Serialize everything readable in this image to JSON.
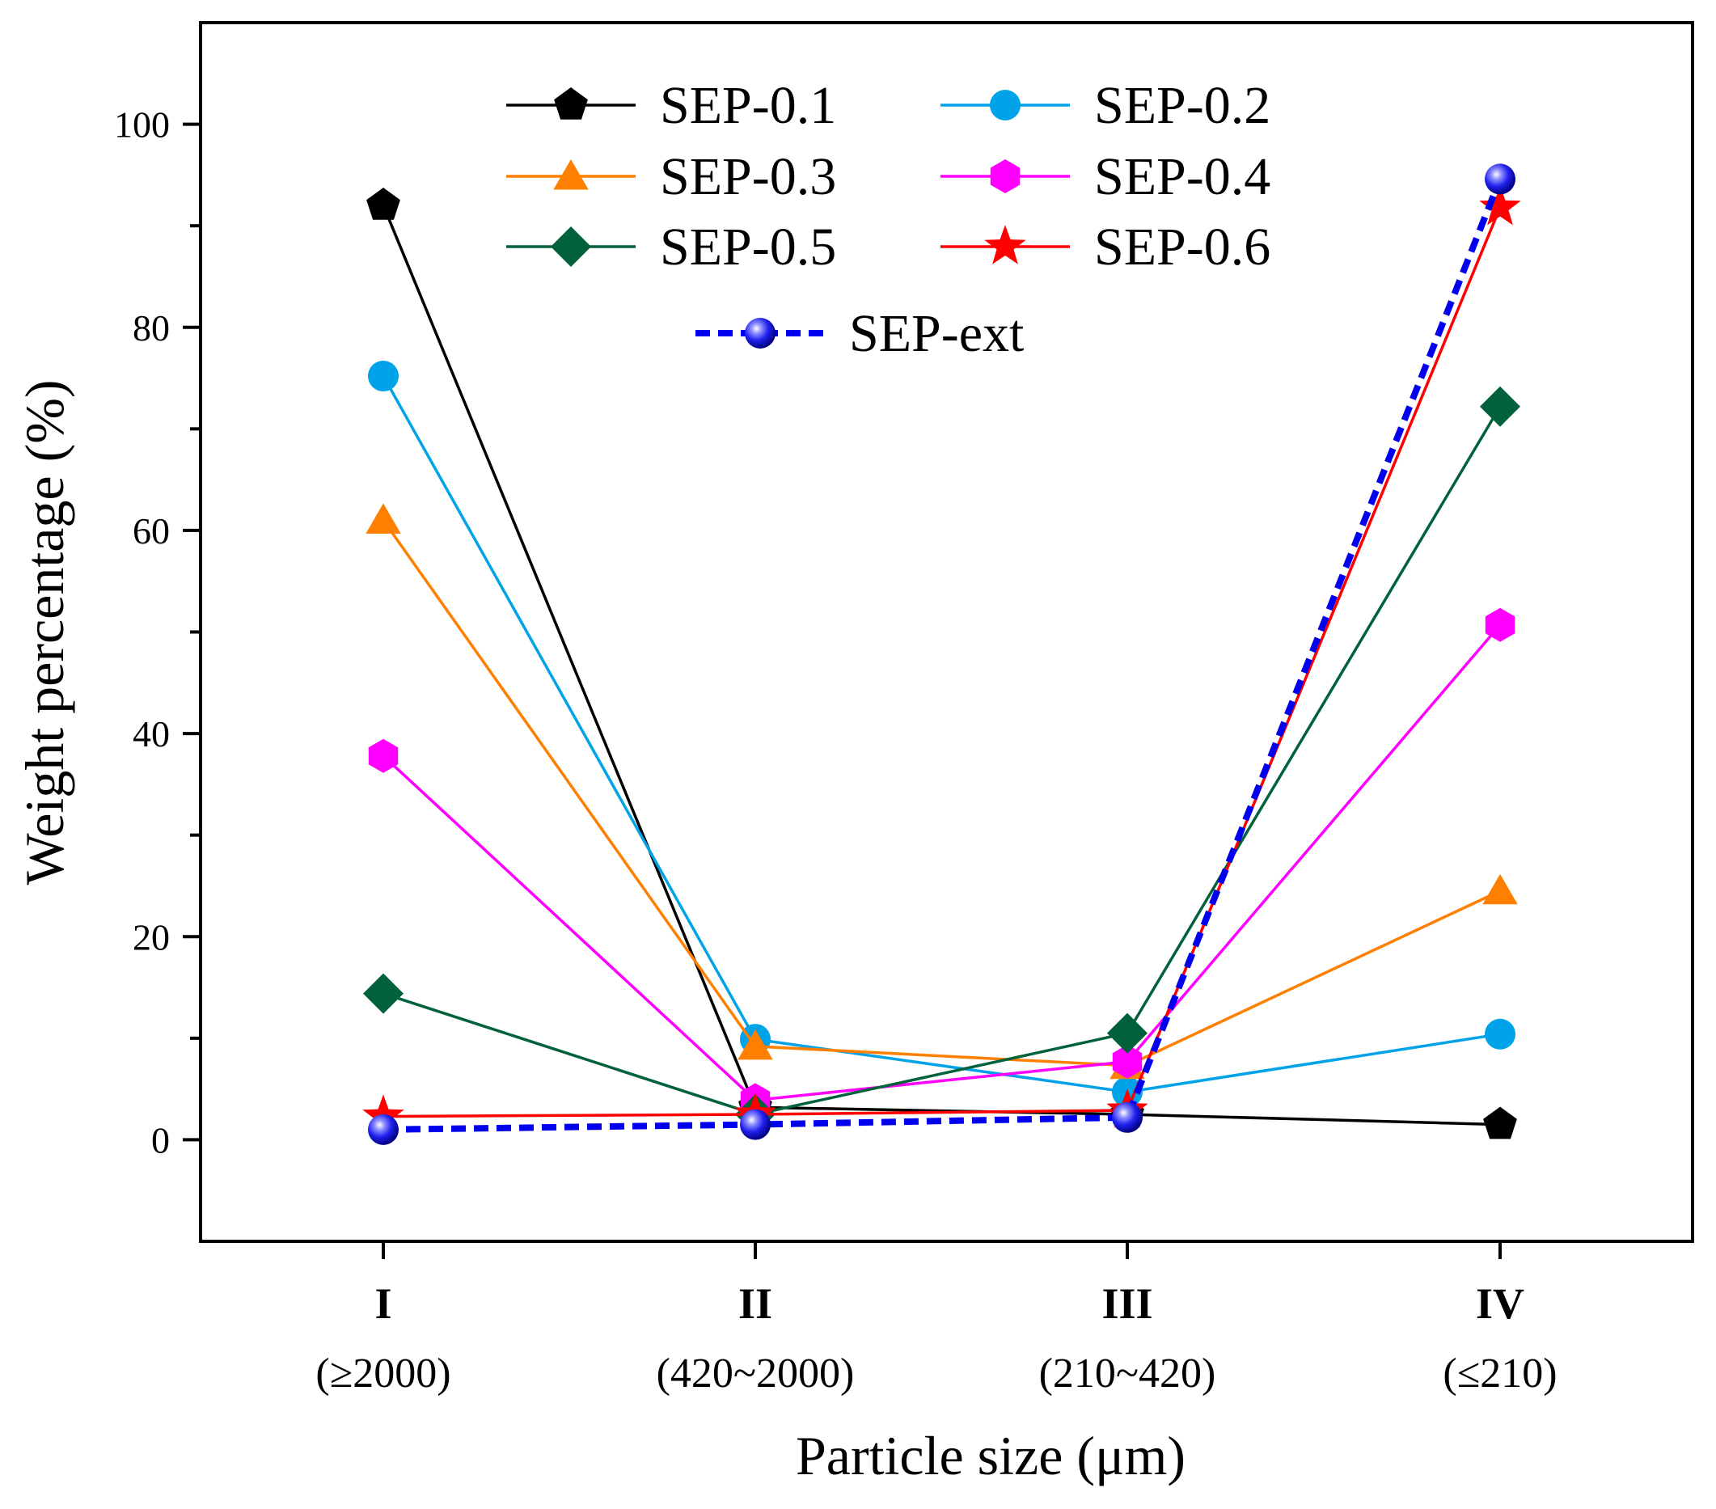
{
  "chart_data": {
    "type": "line",
    "title": "",
    "xlabel": "Particle size (μm)",
    "ylabel": "Weight percentage (%)",
    "ylim": [
      -10,
      110
    ],
    "yticks": [
      0,
      20,
      40,
      60,
      80,
      100
    ],
    "grid": false,
    "legend_position": "top-center",
    "categories": [
      "I",
      "II",
      "III",
      "IV"
    ],
    "category_sublabels": [
      "(≥2000)",
      "(420~2000)",
      "(210~420)",
      "(≤210)"
    ],
    "series": [
      {
        "name": "SEP-0.1",
        "color": "#000000",
        "marker": "pentagon",
        "dashed": false,
        "values": [
          92.0,
          3.2,
          2.5,
          1.5
        ]
      },
      {
        "name": "SEP-0.2",
        "color": "#00a2e8",
        "marker": "circle",
        "dashed": false,
        "values": [
          75.2,
          9.9,
          4.7,
          10.4
        ]
      },
      {
        "name": "SEP-0.3",
        "color": "#ff8000",
        "marker": "triangle",
        "dashed": false,
        "values": [
          61.0,
          9.2,
          7.3,
          24.5
        ]
      },
      {
        "name": "SEP-0.4",
        "color": "#ff00ff",
        "marker": "hexagon",
        "dashed": false,
        "values": [
          37.8,
          3.9,
          7.7,
          50.7
        ]
      },
      {
        "name": "SEP-0.5",
        "color": "#00613a",
        "marker": "diamond",
        "dashed": false,
        "values": [
          14.4,
          2.5,
          10.5,
          72.2
        ]
      },
      {
        "name": "SEP-0.6",
        "color": "#ff0000",
        "marker": "star",
        "dashed": false,
        "values": [
          2.3,
          2.5,
          2.9,
          91.8
        ]
      },
      {
        "name": "SEP-ext",
        "color": "#0000ee",
        "marker": "sphere",
        "dashed": true,
        "values": [
          1.0,
          1.5,
          2.2,
          94.6
        ]
      }
    ]
  }
}
